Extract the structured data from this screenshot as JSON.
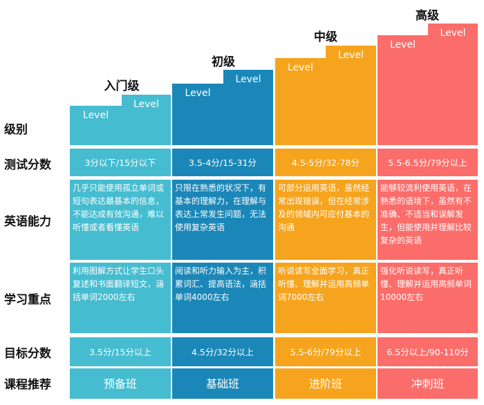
{
  "levels": [
    {
      "title": "入门级",
      "level_text": "Level",
      "color": "#45bcd0"
    },
    {
      "title": "初级",
      "level_text": "Level",
      "color": "#1b87b8"
    },
    {
      "title": "中级",
      "level_text": "Level",
      "color": "#f6a41e"
    },
    {
      "title": "高级",
      "level_text": "Level",
      "color": "#fb6d6a"
    }
  ],
  "row_labels": {
    "level": "级别",
    "test_score": "测试分数",
    "english_ability": "英语能力",
    "study_focus": "学习重点",
    "target_score": "目标分数",
    "course": "课程推荐"
  },
  "columns": [
    {
      "test_score": "3分以下/15分以下",
      "english_ability": "几乎只能使用孤立单词或短句表达最基本的信息，不能达成有效沟通，难以听懂或者看懂英语",
      "study_focus": "利用图解方式让学生口头复述和书面翻译短文，涵括单词2000左右",
      "target_score": "3.5分/15分以上",
      "course": "预备班"
    },
    {
      "test_score": "3.5-4分/15-31分",
      "english_ability": "只限在熟悉的状况下，有基本的理解力，在理解与表达上常发生问题，无法使用复杂英语",
      "study_focus": "阅读和听力输入为主，积累词汇、提高语法，涵括单词4000左右",
      "target_score": "4.5分/32分以上",
      "course": "基础班"
    },
    {
      "test_score": "4.5-5分/32-78分",
      "english_ability": "可部分运用英语，虽然经常出现错误，但在经常涉及的领域内可应付基本的沟通",
      "study_focus": "听说读写全面学习，真正听懂、理解并运用高频单词7000左右",
      "target_score": "5.5-6分/79分以上",
      "course": "进阶班"
    },
    {
      "test_score": "5.5-6.5分/79分以上",
      "english_ability": "能够较流利使用英语，在熟悉的语境下，虽然有不准确、不适当和误解发生，但能使用并理解比较复杂的英语",
      "study_focus": "强化听说读写，真正听懂、理解并运用高频单词10000左右",
      "target_score": "6.5分以上/90-110分",
      "course": "冲刺班"
    }
  ]
}
